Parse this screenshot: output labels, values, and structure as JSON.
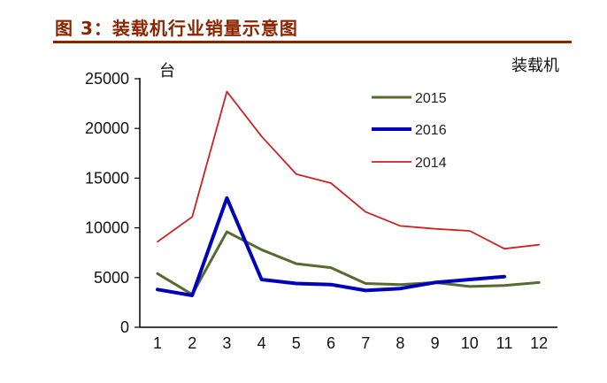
{
  "header": {
    "title": "图 3：装载机行业销量示意图"
  },
  "chart_data": {
    "type": "line",
    "y_unit_label": "台",
    "corner_label": "装载机",
    "x": [
      1,
      2,
      3,
      4,
      5,
      6,
      7,
      8,
      9,
      10,
      11,
      12
    ],
    "x_tick_labels": [
      "1",
      "2",
      "3",
      "4",
      "5",
      "6",
      "7",
      "8",
      "9",
      "10",
      "11",
      "12"
    ],
    "y_tick_labels": [
      "0",
      "5000",
      "10000",
      "15000",
      "20000",
      "25000"
    ],
    "ylim": [
      0,
      25000
    ],
    "grid": false,
    "legend_position": "upper-middle",
    "series": [
      {
        "name": "2015",
        "color": "#556b2f",
        "width": 3.0,
        "values": [
          5400,
          3300,
          9600,
          7800,
          6400,
          6000,
          4400,
          4300,
          4500,
          4100,
          4200,
          4500
        ]
      },
      {
        "name": "2016",
        "color": "#0000bb",
        "width": 4.0,
        "values": [
          3800,
          3200,
          13000,
          4800,
          4400,
          4300,
          3700,
          3900,
          4500,
          4800,
          5100,
          null
        ]
      },
      {
        "name": "2014",
        "color": "#cc2222",
        "width": 1.8,
        "values": [
          8600,
          11100,
          23700,
          19200,
          15400,
          14500,
          11600,
          10200,
          9900,
          9700,
          7900,
          8300
        ]
      }
    ]
  }
}
